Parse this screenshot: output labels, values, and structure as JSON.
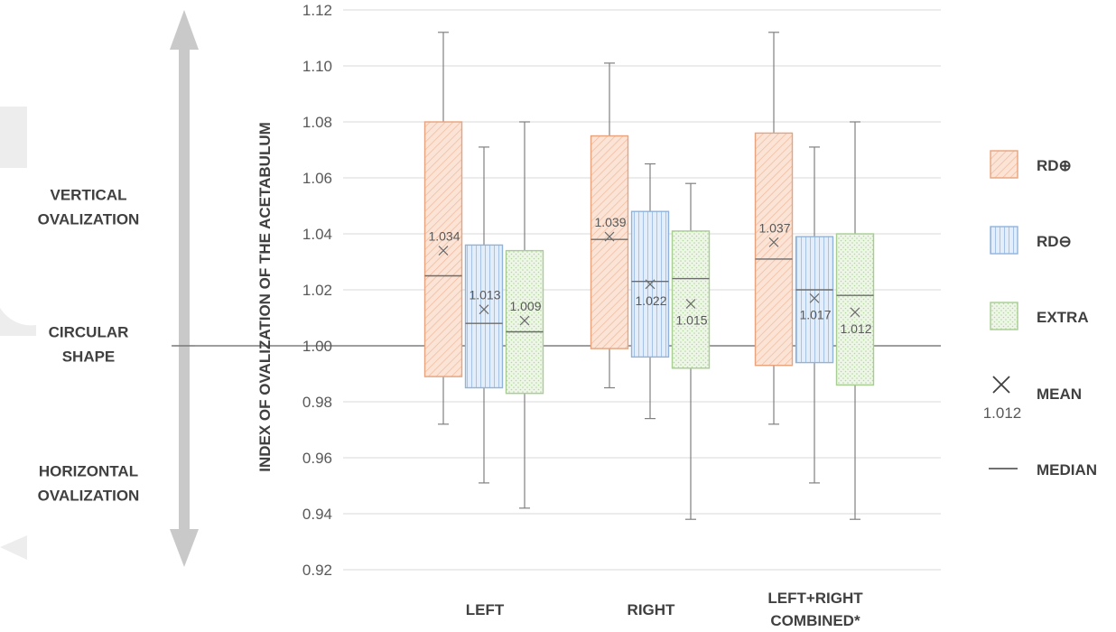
{
  "chart_data": {
    "type": "boxplot",
    "ylabel": "INDEX OF OVALIZATION OF THE ACETABULUM",
    "ylim": [
      0.92,
      1.12
    ],
    "yticks": [
      "0.92",
      "0.94",
      "0.96",
      "0.98",
      "1.00",
      "1.02",
      "1.04",
      "1.06",
      "1.08",
      "1.10",
      "1.12"
    ],
    "reference_line": 1.0,
    "grid": true,
    "categories": [
      {
        "label_lines": [
          "LEFT"
        ]
      },
      {
        "label_lines": [
          "RIGHT"
        ]
      },
      {
        "label_lines": [
          "LEFT+RIGHT",
          "COMBINED*"
        ]
      }
    ],
    "series": [
      {
        "name": "RD⊕",
        "fill": "#fbe4d6",
        "stroke": "#e8a27c",
        "pattern": "diagonal",
        "boxes": [
          {
            "whisker_low": 0.972,
            "q1": 0.989,
            "median": 1.025,
            "q3": 1.08,
            "whisker_high": 1.112,
            "mean": 1.034,
            "mean_label": "1.034"
          },
          {
            "whisker_low": 0.985,
            "q1": 0.999,
            "median": 1.038,
            "q3": 1.075,
            "whisker_high": 1.101,
            "mean": 1.039,
            "mean_label": "1.039"
          },
          {
            "whisker_low": 0.972,
            "q1": 0.993,
            "median": 1.031,
            "q3": 1.076,
            "whisker_high": 1.112,
            "mean": 1.037,
            "mean_label": "1.037"
          }
        ]
      },
      {
        "name": "RD⊖",
        "fill": "#dce8f7",
        "stroke": "#8fb3dd",
        "pattern": "vertical",
        "boxes": [
          {
            "whisker_low": 0.951,
            "q1": 0.985,
            "median": 1.008,
            "q3": 1.036,
            "whisker_high": 1.071,
            "mean": 1.013,
            "mean_label": "1.013"
          },
          {
            "whisker_low": 0.974,
            "q1": 0.996,
            "median": 1.023,
            "q3": 1.048,
            "whisker_high": 1.065,
            "mean": 1.022,
            "mean_label": "1.022"
          },
          {
            "whisker_low": 0.951,
            "q1": 0.994,
            "median": 1.02,
            "q3": 1.039,
            "whisker_high": 1.071,
            "mean": 1.017,
            "mean_label": "1.017"
          }
        ]
      },
      {
        "name": "EXTRA",
        "fill": "#e6f2de",
        "stroke": "#a7cd92",
        "pattern": "dots",
        "boxes": [
          {
            "whisker_low": 0.942,
            "q1": 0.983,
            "median": 1.005,
            "q3": 1.034,
            "whisker_high": 1.08,
            "mean": 1.009,
            "mean_label": "1.009"
          },
          {
            "whisker_low": 0.938,
            "q1": 0.992,
            "median": 1.024,
            "q3": 1.041,
            "whisker_high": 1.058,
            "mean": 1.015,
            "mean_label": "1.015"
          },
          {
            "whisker_low": 0.938,
            "q1": 0.986,
            "median": 1.018,
            "q3": 1.04,
            "whisker_high": 1.08,
            "mean": 1.012,
            "mean_label": "1.012"
          }
        ]
      }
    ],
    "legend": {
      "placement": "right",
      "mean_symbol": "×",
      "mean_example": "1.012",
      "mean_label": "MEAN",
      "median_label": "MEDIAN"
    },
    "side_scale": {
      "top_label_lines": [
        "VERTICAL",
        "OVALIZATION"
      ],
      "middle_label_lines": [
        "CIRCULAR",
        "SHAPE"
      ],
      "bottom_label_lines": [
        "HORIZONTAL",
        "OVALIZATION"
      ],
      "arrow_color": "#c9c9c9"
    },
    "colors": {
      "axis_text": "#595959",
      "label_text": "#404040",
      "grid": "#d9d9d9",
      "reference_line": "#7f7f7f",
      "whisker": "#808080"
    }
  }
}
